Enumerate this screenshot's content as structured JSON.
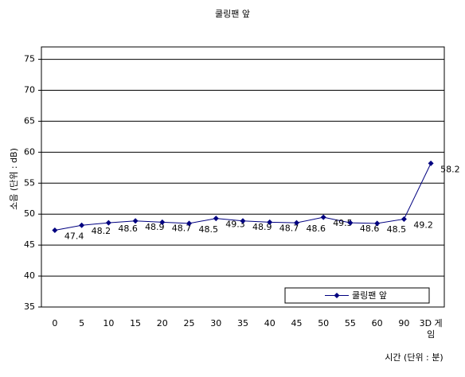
{
  "chart_data": {
    "type": "line",
    "title": "쿨링팬 앞",
    "y_label": "소음 (단위 : dB)",
    "x_label": "시간 (단위 : 분)",
    "categories": [
      "0",
      "5",
      "10",
      "15",
      "20",
      "25",
      "30",
      "35",
      "40",
      "45",
      "50",
      "55",
      "60",
      "90",
      "3D 게임"
    ],
    "series": [
      {
        "name": "쿨링팬 앞",
        "color": "#000080",
        "values": [
          47.4,
          48.2,
          48.6,
          48.9,
          48.7,
          48.5,
          49.3,
          48.9,
          48.7,
          48.6,
          49.5,
          48.6,
          48.5,
          49.2,
          58.2
        ]
      }
    ],
    "ylim": [
      35,
      77
    ],
    "yticks": [
      35,
      40,
      45,
      50,
      55,
      60,
      65,
      70,
      75
    ],
    "grid": true,
    "legend": "lower right"
  }
}
